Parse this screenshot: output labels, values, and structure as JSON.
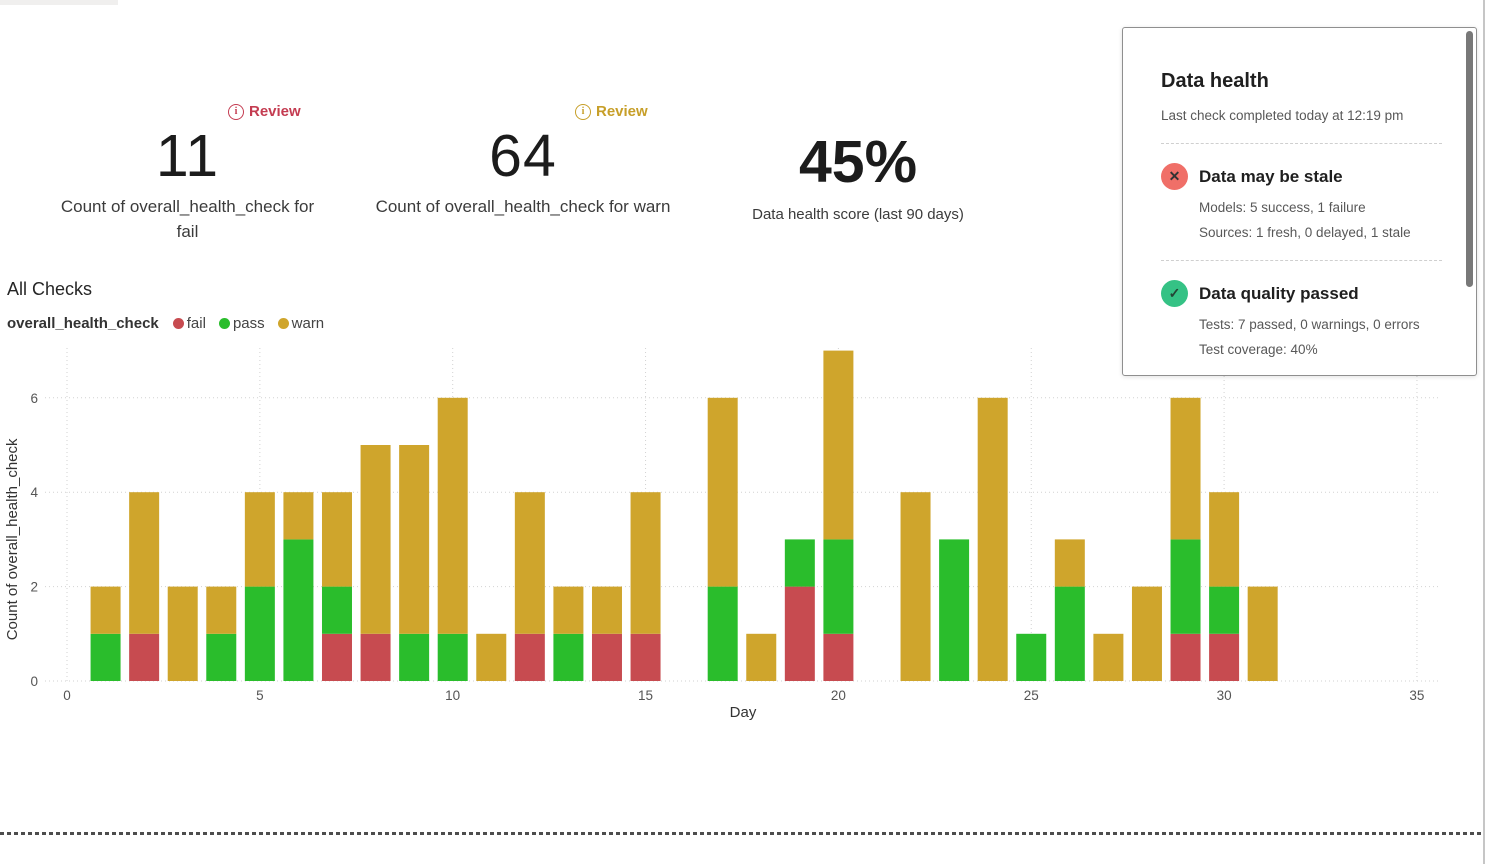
{
  "metrics": [
    {
      "badge": "Review",
      "value": "11",
      "caption": "Count of overall_health_check for fail"
    },
    {
      "badge": "Review",
      "value": "64",
      "caption": "Count of overall_health_check for warn"
    },
    {
      "value": "45%",
      "caption": "Data health score (last 90 days)"
    }
  ],
  "section_title": "All Checks",
  "icons": {
    "info": "i",
    "fail_x": "✕",
    "pass_check": "✓"
  },
  "colors": {
    "fail": "#c74b50",
    "pass": "#2abd2c",
    "warn": "#cfa52c",
    "badge_fail": "#c43c51",
    "badge_warn": "#c79f29",
    "stale_icon": "#f06f68",
    "passed_icon": "#35c285"
  },
  "chart_data": {
    "type": "bar",
    "stacked": true,
    "title": "All Checks",
    "xlabel": "Day",
    "ylabel": "Count of overall_health_check",
    "xlim": [
      0,
      35
    ],
    "ylim": [
      0,
      7
    ],
    "x_ticks": [
      0,
      5,
      10,
      15,
      20,
      25,
      30,
      35
    ],
    "y_ticks": [
      0,
      2,
      4,
      6
    ],
    "grid": true,
    "legend": {
      "group_label": "overall_health_check",
      "position": "top-left",
      "entries": [
        {
          "name": "fail",
          "color": "#c74b50"
        },
        {
          "name": "pass",
          "color": "#2abd2c"
        },
        {
          "name": "warn",
          "color": "#cfa52c"
        }
      ]
    },
    "days": [
      1,
      2,
      3,
      4,
      5,
      6,
      7,
      8,
      9,
      10,
      11,
      12,
      13,
      14,
      15,
      17,
      18,
      19,
      20,
      22,
      23,
      24,
      25,
      26,
      27,
      28,
      29,
      30,
      31
    ],
    "series": [
      {
        "name": "fail",
        "values": [
          0,
          1,
          0,
          0,
          0,
          0,
          1,
          1,
          0,
          0,
          0,
          1,
          0,
          1,
          1,
          0,
          0,
          2,
          1,
          0,
          0,
          0,
          0,
          0,
          0,
          0,
          1,
          1,
          0
        ]
      },
      {
        "name": "pass",
        "values": [
          1,
          0,
          0,
          1,
          2,
          3,
          1,
          0,
          1,
          1,
          0,
          0,
          1,
          0,
          0,
          2,
          0,
          1,
          2,
          0,
          3,
          0,
          1,
          2,
          0,
          0,
          2,
          1,
          0
        ]
      },
      {
        "name": "warn",
        "values": [
          1,
          3,
          2,
          1,
          2,
          1,
          2,
          4,
          4,
          5,
          1,
          3,
          1,
          1,
          3,
          4,
          1,
          0,
          4,
          4,
          0,
          6,
          0,
          1,
          1,
          2,
          3,
          2,
          2
        ]
      }
    ],
    "series_totals": {
      "fail": 11,
      "pass": 25,
      "warn": 64
    }
  },
  "health_panel": {
    "title": "Data health",
    "subtitle": "Last check completed today at 12:19 pm",
    "items": [
      {
        "status": "fail",
        "icon": "x-circle",
        "icon_glyph": "✕",
        "title": "Data may be stale",
        "lines": [
          "Models: 5 success, 1 failure",
          "Sources: 1 fresh, 0 delayed, 1 stale"
        ]
      },
      {
        "status": "pass",
        "icon": "check-circle",
        "icon_glyph": "✓",
        "title": "Data quality passed",
        "lines": [
          "Tests: 7 passed, 0 warnings, 0 errors",
          "Test coverage: 40%"
        ]
      }
    ]
  }
}
